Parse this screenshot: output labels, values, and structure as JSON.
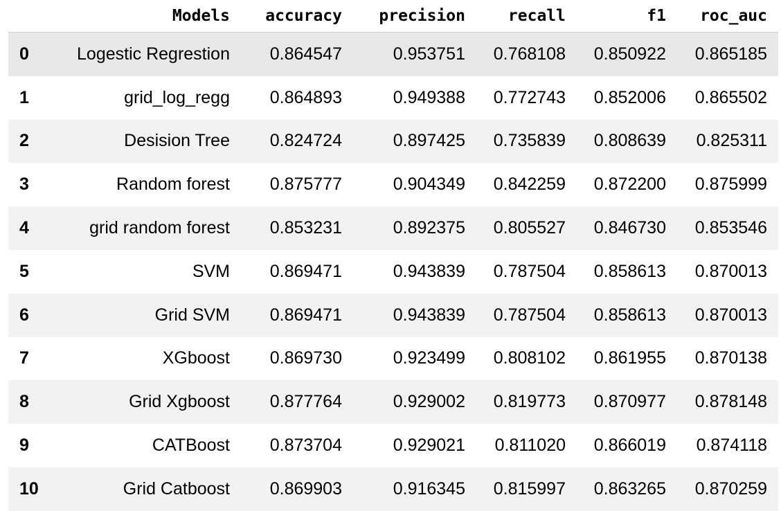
{
  "table": {
    "columns": [
      "",
      "Models",
      "accuracy",
      "precision",
      "recall",
      "f1",
      "roc_auc"
    ],
    "rows": [
      {
        "index": "0",
        "model": "Logestic Regrestion",
        "accuracy": "0.864547",
        "precision": "0.953751",
        "recall": "0.768108",
        "f1": "0.850922",
        "roc_auc": "0.865185"
      },
      {
        "index": "1",
        "model": "grid_log_regg",
        "accuracy": "0.864893",
        "precision": "0.949388",
        "recall": "0.772743",
        "f1": "0.852006",
        "roc_auc": "0.865502"
      },
      {
        "index": "2",
        "model": "Desision Tree",
        "accuracy": "0.824724",
        "precision": "0.897425",
        "recall": "0.735839",
        "f1": "0.808639",
        "roc_auc": "0.825311"
      },
      {
        "index": "3",
        "model": "Random forest",
        "accuracy": "0.875777",
        "precision": "0.904349",
        "recall": "0.842259",
        "f1": "0.872200",
        "roc_auc": "0.875999"
      },
      {
        "index": "4",
        "model": "grid random forest",
        "accuracy": "0.853231",
        "precision": "0.892375",
        "recall": "0.805527",
        "f1": "0.846730",
        "roc_auc": "0.853546"
      },
      {
        "index": "5",
        "model": "SVM",
        "accuracy": "0.869471",
        "precision": "0.943839",
        "recall": "0.787504",
        "f1": "0.858613",
        "roc_auc": "0.870013"
      },
      {
        "index": "6",
        "model": "Grid SVM",
        "accuracy": "0.869471",
        "precision": "0.943839",
        "recall": "0.787504",
        "f1": "0.858613",
        "roc_auc": "0.870013"
      },
      {
        "index": "7",
        "model": "XGboost",
        "accuracy": "0.869730",
        "precision": "0.923499",
        "recall": "0.808102",
        "f1": "0.861955",
        "roc_auc": "0.870138"
      },
      {
        "index": "8",
        "model": "Grid Xgboost",
        "accuracy": "0.877764",
        "precision": "0.929002",
        "recall": "0.819773",
        "f1": "0.870977",
        "roc_auc": "0.878148"
      },
      {
        "index": "9",
        "model": "CATBoost",
        "accuracy": "0.873704",
        "precision": "0.929021",
        "recall": "0.811020",
        "f1": "0.866019",
        "roc_auc": "0.874118"
      },
      {
        "index": "10",
        "model": "Grid Catboost",
        "accuracy": "0.869903",
        "precision": "0.916345",
        "recall": "0.815997",
        "f1": "0.863265",
        "roc_auc": "0.870259"
      }
    ]
  }
}
